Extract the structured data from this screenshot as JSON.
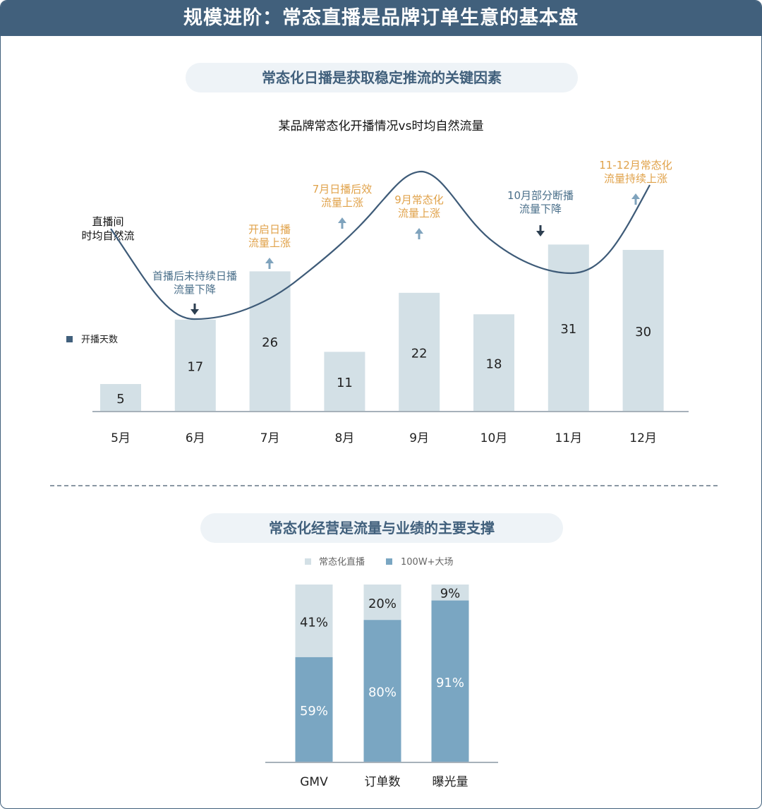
{
  "header": {
    "title": "规模进阶：常态直播是品牌订单生意的基本盘"
  },
  "section1": {
    "pill": "常态化日播是获取稳定推流的关键因素"
  },
  "section2": {
    "pill": "常态化经营是流量与业绩的主要支撑"
  },
  "colors": {
    "primary": "#41607c",
    "bar_light": "#d3e0e6",
    "bar_mid": "#7aa6c2",
    "annotation_orange": "#e0a24a",
    "annotation_blue": "#4a6f8a",
    "line": "#3e5b78"
  },
  "chart_data": [
    {
      "type": "bar",
      "title": "某品牌常态化开播情况vs时均自然流量",
      "categories": [
        "5月",
        "6月",
        "7月",
        "8月",
        "9月",
        "10月",
        "11月",
        "12月"
      ],
      "series": [
        {
          "name": "开播天数",
          "values": [
            5,
            17,
            26,
            11,
            22,
            18,
            31,
            30
          ]
        }
      ],
      "line_series": {
        "name_lines": [
          "直播间",
          "时均自然流"
        ]
      },
      "annotations": [
        {
          "lines": [
            "首播后未持续日播",
            "流量下降"
          ],
          "trend": "down",
          "style": "blue"
        },
        {
          "lines": [
            "开启日播",
            "流量上涨"
          ],
          "trend": "up",
          "style": "orange"
        },
        {
          "lines": [
            "7月日播后效",
            "流量上涨"
          ],
          "trend": "up",
          "style": "orange"
        },
        {
          "lines": [
            "9月常态化",
            "流量上涨"
          ],
          "trend": "up",
          "style": "orange"
        },
        {
          "lines": [
            "10月部分断播",
            "流量下降"
          ],
          "trend": "down",
          "style": "blue"
        },
        {
          "lines": [
            "11-12月常态化",
            "流量持续上涨"
          ],
          "trend": "up",
          "style": "orange"
        }
      ],
      "legend_position": "left",
      "ylim": [
        0,
        45
      ]
    },
    {
      "type": "bar",
      "stacked": true,
      "categories": [
        "GMV",
        "订单数",
        "曝光量"
      ],
      "series": [
        {
          "name": "100W+大场",
          "values": [
            59,
            80,
            91
          ]
        },
        {
          "name": "常态化直播",
          "values": [
            41,
            20,
            9
          ]
        }
      ],
      "value_suffix": "%",
      "legend_position": "top"
    }
  ]
}
